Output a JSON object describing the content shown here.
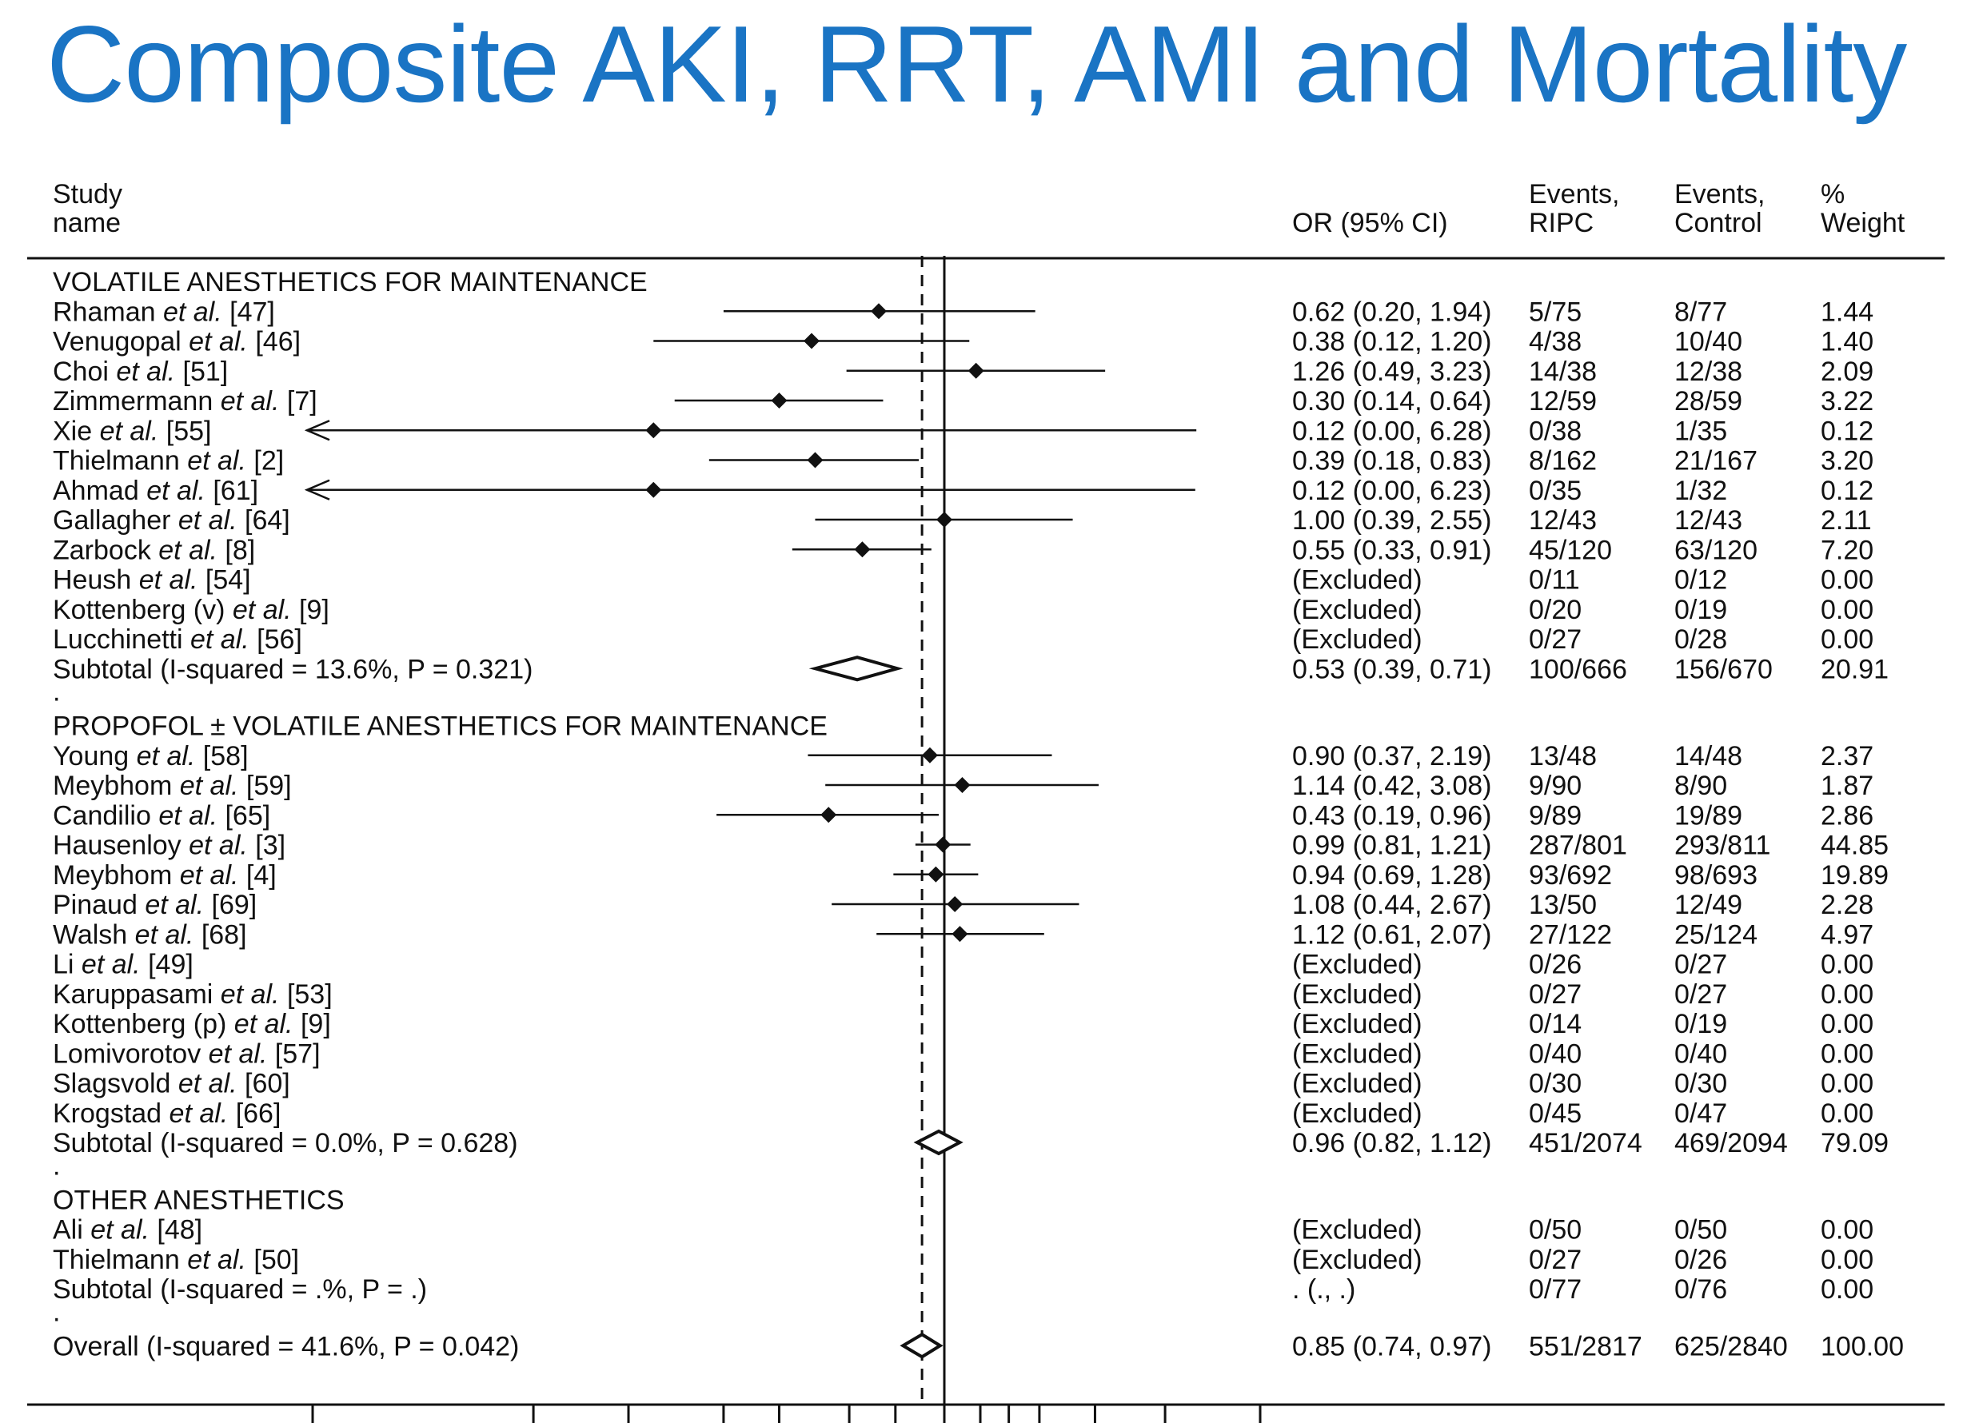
{
  "title": "Composite AKI, RRT, AMI and Mortality",
  "colors": {
    "title": "#1a74c4",
    "ink": "#111111",
    "background": "#ffffff"
  },
  "headers": {
    "study_line1": "Study",
    "study_line2": "name",
    "or": "OR (95% CI)",
    "ripc_line1": "Events,",
    "ripc_line2": "RIPC",
    "control_line1": "Events,",
    "control_line2": "Control",
    "weight_line1": "%",
    "weight_line2": "Weight"
  },
  "chart_data": {
    "type": "forest",
    "x_scale": "log",
    "reference_lines": {
      "solid_null": 1.0,
      "dashed_overall": 0.85
    },
    "x_axis_ticks_unlabeled": [
      0.001,
      0.01,
      0.05,
      0.1,
      0.2,
      0.3,
      0.5,
      0.7,
      1.0,
      1.3,
      1.6,
      2.0,
      3.0,
      5.0,
      10.0
    ],
    "rows": [
      {
        "kind": "group",
        "label": "VOLATILE ANESTHETICS FOR MAINTENANCE"
      },
      {
        "kind": "study",
        "name": "Rhaman",
        "ref": " [47]",
        "or": 0.62,
        "lo": 0.2,
        "hi": 1.94,
        "ci_text": "0.62 (0.20, 1.94)",
        "ripc": "5/75",
        "control": "8/77",
        "weight": "1.44"
      },
      {
        "kind": "study",
        "name": "Venugopal",
        "ref": " [46]",
        "or": 0.38,
        "lo": 0.12,
        "hi": 1.2,
        "ci_text": "0.38 (0.12, 1.20)",
        "ripc": "4/38",
        "control": "10/40",
        "weight": "1.40"
      },
      {
        "kind": "study",
        "name": "Choi",
        "ref": " [51]",
        "or": 1.26,
        "lo": 0.49,
        "hi": 3.23,
        "ci_text": "1.26 (0.49, 3.23)",
        "ripc": "14/38",
        "control": "12/38",
        "weight": "2.09"
      },
      {
        "kind": "study",
        "name": "Zimmermann",
        "ref": " [7]",
        "or": 0.3,
        "lo": 0.14,
        "hi": 0.64,
        "ci_text": "0.30 (0.14, 0.64)",
        "ripc": "12/59",
        "control": "28/59",
        "weight": "3.22"
      },
      {
        "kind": "study",
        "name": "Xie",
        "ref": " [55]",
        "or": 0.12,
        "lo": 0.0,
        "hi": 6.28,
        "ci_text": "0.12 (0.00, 6.28)",
        "ripc": "0/38",
        "control": "1/35",
        "weight": "0.12",
        "arrow_left": true
      },
      {
        "kind": "study",
        "name": "Thielmann",
        "ref": " [2]",
        "or": 0.39,
        "lo": 0.18,
        "hi": 0.83,
        "ci_text": "0.39 (0.18, 0.83)",
        "ripc": "8/162",
        "control": "21/167",
        "weight": "3.20"
      },
      {
        "kind": "study",
        "name": "Ahmad",
        "ref": " [61]",
        "or": 0.12,
        "lo": 0.0,
        "hi": 6.23,
        "ci_text": "0.12 (0.00, 6.23)",
        "ripc": "0/35",
        "control": "1/32",
        "weight": "0.12",
        "arrow_left": true
      },
      {
        "kind": "study",
        "name": "Gallagher",
        "ref": " [64]",
        "or": 1.0,
        "lo": 0.39,
        "hi": 2.55,
        "ci_text": "1.00 (0.39, 2.55)",
        "ripc": "12/43",
        "control": "12/43",
        "weight": "2.11"
      },
      {
        "kind": "study",
        "name": "Zarbock",
        "ref": " [8]",
        "or": 0.55,
        "lo": 0.33,
        "hi": 0.91,
        "ci_text": "0.55 (0.33, 0.91)",
        "ripc": "45/120",
        "control": "63/120",
        "weight": "7.20"
      },
      {
        "kind": "study",
        "name": "Heush",
        "ref": " [54]",
        "ci_text": "(Excluded)",
        "ripc": "0/11",
        "control": "0/12",
        "weight": "0.00"
      },
      {
        "kind": "study",
        "name": "Kottenberg (v)",
        "ref": " [9]",
        "ci_text": "(Excluded)",
        "ripc": "0/20",
        "control": "0/19",
        "weight": "0.00"
      },
      {
        "kind": "study",
        "name": "Lucchinetti",
        "ref": " [56]",
        "ci_text": "(Excluded)",
        "ripc": "0/27",
        "control": "0/28",
        "weight": "0.00"
      },
      {
        "kind": "subtotal",
        "label": "Subtotal  (I-squared = 13.6%, P = 0.321)",
        "or": 0.53,
        "lo": 0.39,
        "hi": 0.71,
        "ci_text": "0.53 (0.39, 0.71)",
        "ripc": "100/666",
        "control": "156/670",
        "weight": "20.91"
      },
      {
        "kind": "dot"
      },
      {
        "kind": "group",
        "label": "PROPOFOL ± VOLATILE ANESTHETICS FOR MAINTENANCE"
      },
      {
        "kind": "study",
        "name": "Young",
        "ref": " [58]",
        "or": 0.9,
        "lo": 0.37,
        "hi": 2.19,
        "ci_text": "0.90 (0.37, 2.19)",
        "ripc": "13/48",
        "control": "14/48",
        "weight": "2.37"
      },
      {
        "kind": "study",
        "name": "Meybhom",
        "ref": " [59]",
        "or": 1.14,
        "lo": 0.42,
        "hi": 3.08,
        "ci_text": "1.14 (0.42, 3.08)",
        "ripc": "9/90",
        "control": "8/90",
        "weight": "1.87"
      },
      {
        "kind": "study",
        "name": "Candilio",
        "ref": " [65]",
        "or": 0.43,
        "lo": 0.19,
        "hi": 0.96,
        "ci_text": "0.43 (0.19, 0.96)",
        "ripc": "9/89",
        "control": "19/89",
        "weight": "2.86"
      },
      {
        "kind": "study",
        "name": "Hausenloy",
        "ref": " [3]",
        "or": 0.99,
        "lo": 0.81,
        "hi": 1.21,
        "ci_text": "0.99 (0.81, 1.21)",
        "ripc": "287/801",
        "control": "293/811",
        "weight": "44.85"
      },
      {
        "kind": "study",
        "name": "Meybhom",
        "ref": " [4]",
        "or": 0.94,
        "lo": 0.69,
        "hi": 1.28,
        "ci_text": "0.94 (0.69, 1.28)",
        "ripc": "93/692",
        "control": "98/693",
        "weight": "19.89"
      },
      {
        "kind": "study",
        "name": "Pinaud",
        "ref": " [69]",
        "or": 1.08,
        "lo": 0.44,
        "hi": 2.67,
        "ci_text": "1.08 (0.44, 2.67)",
        "ripc": "13/50",
        "control": "12/49",
        "weight": "2.28"
      },
      {
        "kind": "study",
        "name": "Walsh",
        "ref": " [68]",
        "or": 1.12,
        "lo": 0.61,
        "hi": 2.07,
        "ci_text": "1.12 (0.61, 2.07)",
        "ripc": "27/122",
        "control": "25/124",
        "weight": "4.97"
      },
      {
        "kind": "study",
        "name": "Li",
        "ref": " [49]",
        "ci_text": "(Excluded)",
        "ripc": "0/26",
        "control": "0/27",
        "weight": "0.00"
      },
      {
        "kind": "study",
        "name": "Karuppasami",
        "ref": " [53]",
        "ci_text": "(Excluded)",
        "ripc": "0/27",
        "control": "0/27",
        "weight": "0.00"
      },
      {
        "kind": "study",
        "name": "Kottenberg (p)",
        "ref": " [9]",
        "ci_text": "(Excluded)",
        "ripc": "0/14",
        "control": "0/19",
        "weight": "0.00"
      },
      {
        "kind": "study",
        "name": "Lomivorotov",
        "ref": " [57]",
        "ci_text": "(Excluded)",
        "ripc": "0/40",
        "control": "0/40",
        "weight": "0.00"
      },
      {
        "kind": "study",
        "name": "Slagsvold",
        "ref": " [60]",
        "ci_text": "(Excluded)",
        "ripc": "0/30",
        "control": "0/30",
        "weight": "0.00"
      },
      {
        "kind": "study",
        "name": "Krogstad",
        "ref": " [66]",
        "ci_text": "(Excluded)",
        "ripc": "0/45",
        "control": "0/47",
        "weight": "0.00"
      },
      {
        "kind": "subtotal",
        "label": "Subtotal  (I-squared = 0.0%, P = 0.628)",
        "or": 0.96,
        "lo": 0.82,
        "hi": 1.12,
        "ci_text": "0.96 (0.82, 1.12)",
        "ripc": "451/2074",
        "control": "469/2094",
        "weight": "79.09"
      },
      {
        "kind": "dot"
      },
      {
        "kind": "group",
        "label": "OTHER ANESTHETICS"
      },
      {
        "kind": "study",
        "name": "Ali",
        "ref": " [48]",
        "ci_text": "(Excluded)",
        "ripc": "0/50",
        "control": "0/50",
        "weight": "0.00"
      },
      {
        "kind": "study",
        "name": "Thielmann",
        "ref": " [50]",
        "ci_text": "(Excluded)",
        "ripc": "0/27",
        "control": "0/26",
        "weight": "0.00"
      },
      {
        "kind": "subtotal",
        "label": "Subtotal  (I-squared = .%, P = .)",
        "ci_text": ". (., .)",
        "ripc": "0/77",
        "control": "0/76",
        "weight": "0.00"
      },
      {
        "kind": "dot"
      },
      {
        "kind": "overall",
        "label": "Overall  (I-squared = 41.6%, P = 0.042)",
        "or": 0.85,
        "lo": 0.74,
        "hi": 0.97,
        "ci_text": "0.85 (0.74, 0.97)",
        "ripc": "551/2817",
        "control": "625/2840",
        "weight": "100.00"
      }
    ]
  }
}
